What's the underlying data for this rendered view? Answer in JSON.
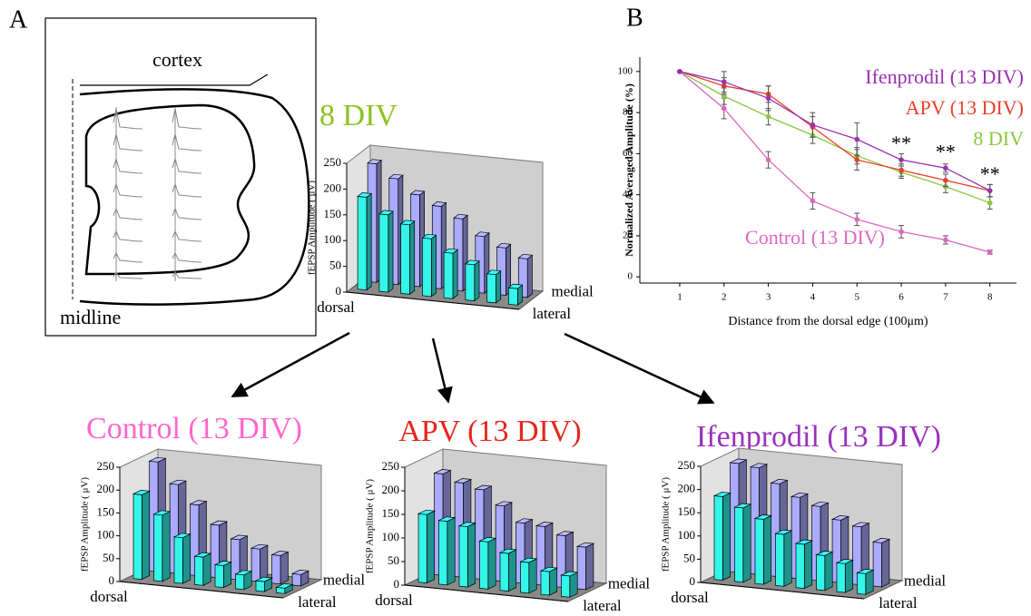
{
  "panel_a": {
    "label": "A",
    "cortex": "cortex",
    "midline": "midline"
  },
  "chart_data": [
    {
      "type": "bar3d",
      "title": "8 DIV",
      "title_color": "#8dc21f",
      "ylabel": "fEPSP Amplitude ( μV)",
      "x_label": "dorsal",
      "ylim": [
        0,
        250
      ],
      "yticks": [
        0,
        50,
        100,
        150,
        200,
        250
      ],
      "series": [
        {
          "name": "lateral",
          "color": "#33f5e8",
          "values": [
            180,
            150,
            135,
            112,
            88,
            70,
            55,
            32
          ]
        },
        {
          "name": "medial",
          "color": "#aaaaff",
          "values": [
            230,
            205,
            178,
            160,
            140,
            110,
            92,
            75
          ]
        }
      ]
    },
    {
      "type": "bar3d",
      "title": "Control (13 DIV)",
      "title_color": "#ff66cc",
      "ylabel": "fEPSP Amplitude ( μV)",
      "x_label": "dorsal",
      "ylim": [
        0,
        250
      ],
      "yticks": [
        0,
        50,
        100,
        150,
        200,
        250
      ],
      "series": [
        {
          "name": "lateral",
          "color": "#33f5e8",
          "values": [
            185,
            145,
            100,
            62,
            48,
            32,
            22,
            12
          ]
        },
        {
          "name": "medial",
          "color": "#aaaaff",
          "values": [
            240,
            195,
            155,
            115,
            88,
            72,
            62,
            25
          ]
        }
      ]
    },
    {
      "type": "bar3d",
      "title": "APV (13 DIV)",
      "title_color": "#e8251c",
      "ylabel": "fEPSP Amplitude ( μV)",
      "x_label": "dorsal",
      "ylim": [
        0,
        250
      ],
      "yticks": [
        0,
        50,
        100,
        150,
        200,
        250
      ],
      "series": [
        {
          "name": "lateral",
          "color": "#33f5e8",
          "values": [
            145,
            135,
            128,
            100,
            80,
            65,
            50,
            45
          ]
        },
        {
          "name": "medial",
          "color": "#aaaaff",
          "values": [
            215,
            200,
            190,
            160,
            128,
            125,
            110,
            90
          ]
        }
      ]
    },
    {
      "type": "bar3d",
      "title": "Ifenprodil (13 DIV)",
      "title_color": "#9933bb",
      "ylabel": "fEPSP Amplitude ( μV)",
      "x_label": "dorsal",
      "ylim": [
        0,
        250
      ],
      "yticks": [
        0,
        50,
        100,
        150,
        200,
        250
      ],
      "series": [
        {
          "name": "lateral",
          "color": "#33f5e8",
          "values": [
            180,
            160,
            140,
            112,
            95,
            75,
            62,
            45
          ]
        },
        {
          "name": "medial",
          "color": "#aaaaff",
          "values": [
            235,
            230,
            200,
            175,
            160,
            135,
            125,
            95
          ]
        }
      ]
    },
    {
      "type": "line",
      "panel_label": "B",
      "xlabel": "Distance from the dorsal edge (100μm)",
      "ylabel": "Normalized Averaged Amplitude (%)",
      "x": [
        1,
        2,
        3,
        4,
        5,
        6,
        7,
        8
      ],
      "xlim": [
        0.1,
        8.6
      ],
      "xticks": [
        1,
        2,
        3,
        4,
        5,
        6,
        7,
        8
      ],
      "ylim": [
        -3,
        107
      ],
      "yticks": [
        0,
        20,
        40,
        60,
        80,
        100
      ],
      "series": [
        {
          "name": "Ifenprodil (13 DIV)",
          "color": "#9b30b0",
          "values": [
            100,
            95,
            87,
            74,
            67,
            57,
            53,
            42
          ],
          "errors": [
            0,
            5,
            6,
            6,
            8,
            3,
            2,
            3
          ]
        },
        {
          "name": "APV (13 DIV)",
          "color": "#e8402a",
          "values": [
            100,
            93,
            89,
            73,
            57,
            52,
            47,
            42
          ],
          "errors": [
            0,
            4,
            4,
            5,
            5,
            3,
            3,
            3
          ]
        },
        {
          "name": "8 DIV",
          "color": "#8cc63f",
          "values": [
            100,
            88,
            78,
            69,
            59,
            51,
            44,
            36
          ],
          "errors": [
            0,
            4,
            4,
            4,
            4,
            3,
            3,
            3
          ]
        },
        {
          "name": "Control (13 DIV)",
          "color": "#e066c0",
          "values": [
            100,
            82,
            57,
            37,
            28,
            22,
            18,
            12
          ],
          "errors": [
            0,
            5,
            4,
            4,
            3,
            3,
            2,
            1
          ]
        }
      ],
      "annotations": [
        "**",
        "**",
        "**"
      ]
    }
  ]
}
